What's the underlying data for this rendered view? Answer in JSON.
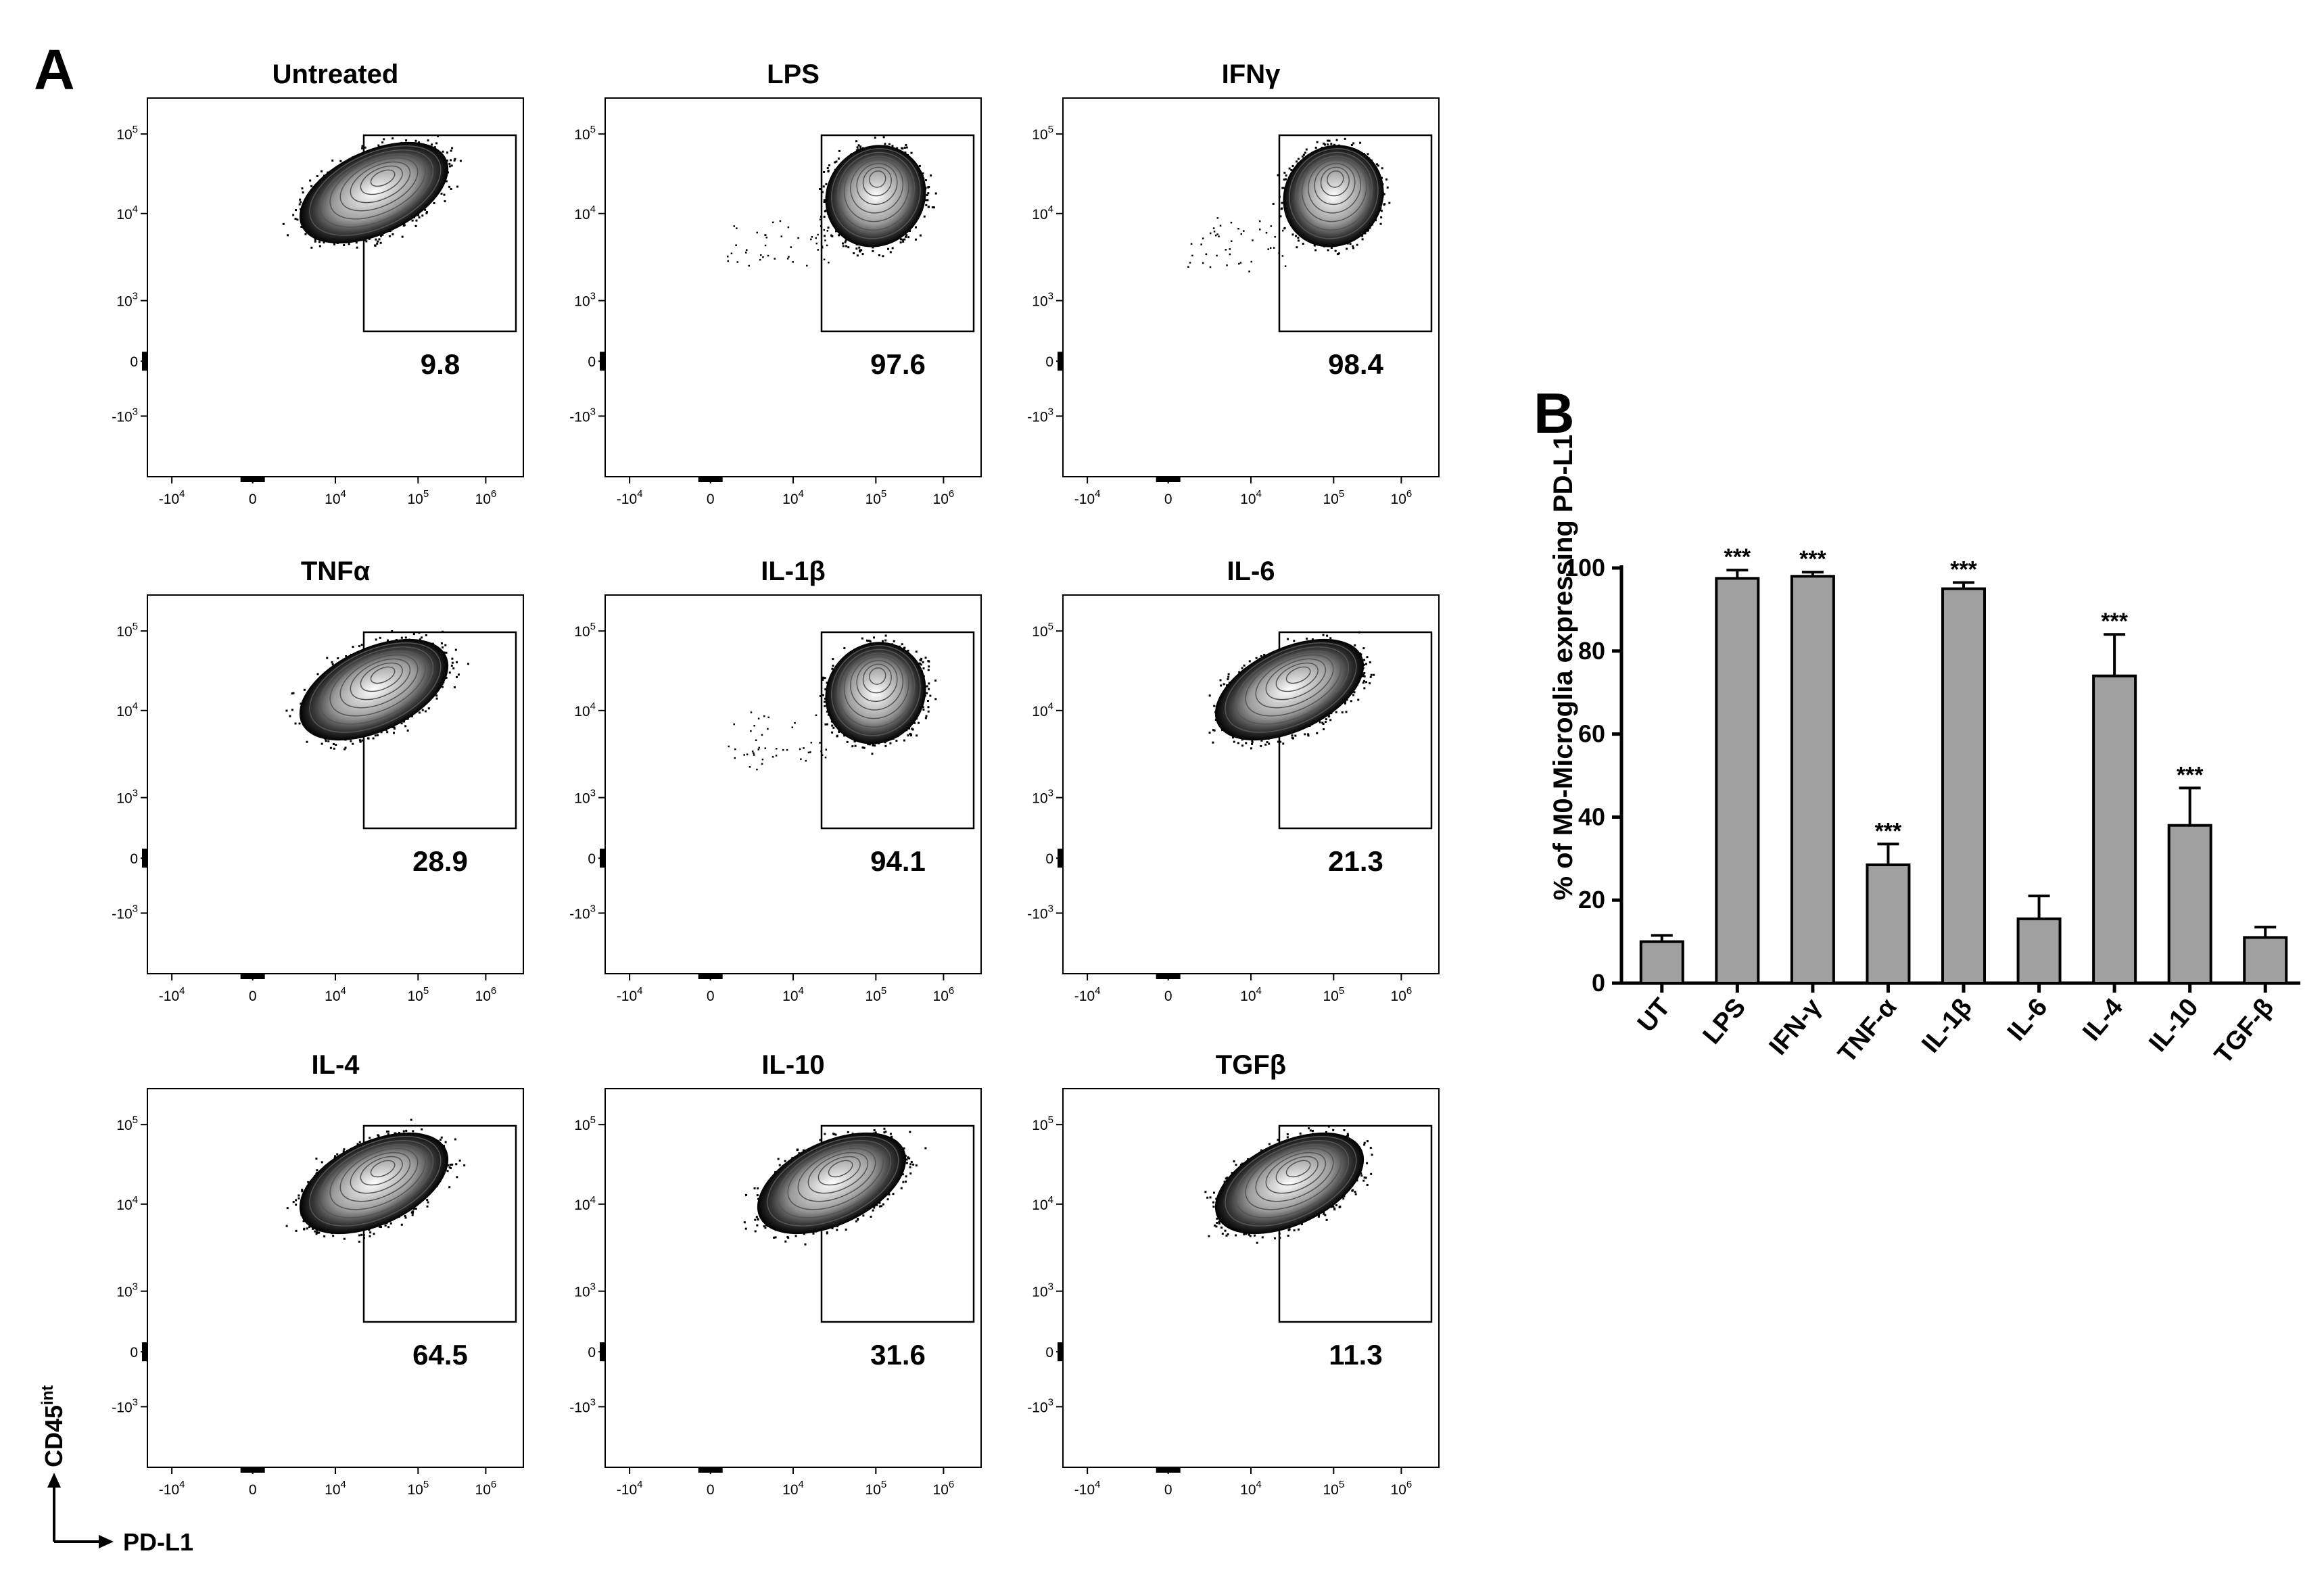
{
  "panel_a_label": "A",
  "panel_b_label": "B",
  "flow_x_axis_label": "PD-L1",
  "flow_y_axis_label": "CD45",
  "flow_y_axis_label_sup": "int",
  "flow_tick_labels": {
    "x": [
      [
        "-10",
        "4"
      ],
      [
        "0",
        ""
      ],
      [
        "10",
        "4"
      ],
      [
        "10",
        "5"
      ],
      [
        "10",
        "6"
      ]
    ],
    "y": [
      [
        "10",
        "5"
      ],
      [
        "10",
        "4"
      ],
      [
        "10",
        "3"
      ],
      [
        "0",
        ""
      ],
      [
        "-10",
        "3"
      ]
    ]
  },
  "flow_plots": [
    {
      "title": "Untreated",
      "gate_percent": "9.8"
    },
    {
      "title": "LPS",
      "gate_percent": "97.6"
    },
    {
      "title": "IFNγ",
      "gate_percent": "98.4"
    },
    {
      "title": "TNFα",
      "gate_percent": "28.9"
    },
    {
      "title": "IL-1β",
      "gate_percent": "94.1"
    },
    {
      "title": "IL-6",
      "gate_percent": "21.3"
    },
    {
      "title": "IL-4",
      "gate_percent": "64.5"
    },
    {
      "title": "IL-10",
      "gate_percent": "31.6"
    },
    {
      "title": "TGFβ",
      "gate_percent": "11.3"
    }
  ],
  "chart_data": {
    "type": "bar",
    "title": "",
    "xlabel": "",
    "ylabel": "% of M0-Microglia expressing PD-L1",
    "ylim": [
      0,
      100
    ],
    "yticks": [
      0,
      20,
      40,
      60,
      80,
      100
    ],
    "categories": [
      "UT",
      "LPS",
      "IFN-γ",
      "TNF-α",
      "IL-1β",
      "IL-6",
      "IL-4",
      "IL-10",
      "TGF-β"
    ],
    "values": [
      10,
      97.5,
      98,
      28.5,
      95,
      15.5,
      74,
      38,
      11
    ],
    "errors": [
      1.5,
      2,
      1,
      5,
      1.5,
      5.5,
      10,
      9,
      2.5
    ],
    "significance": [
      "",
      "***",
      "***",
      "***",
      "***",
      "",
      "***",
      "***",
      ""
    ],
    "bar_color": "#a0a0a0"
  }
}
